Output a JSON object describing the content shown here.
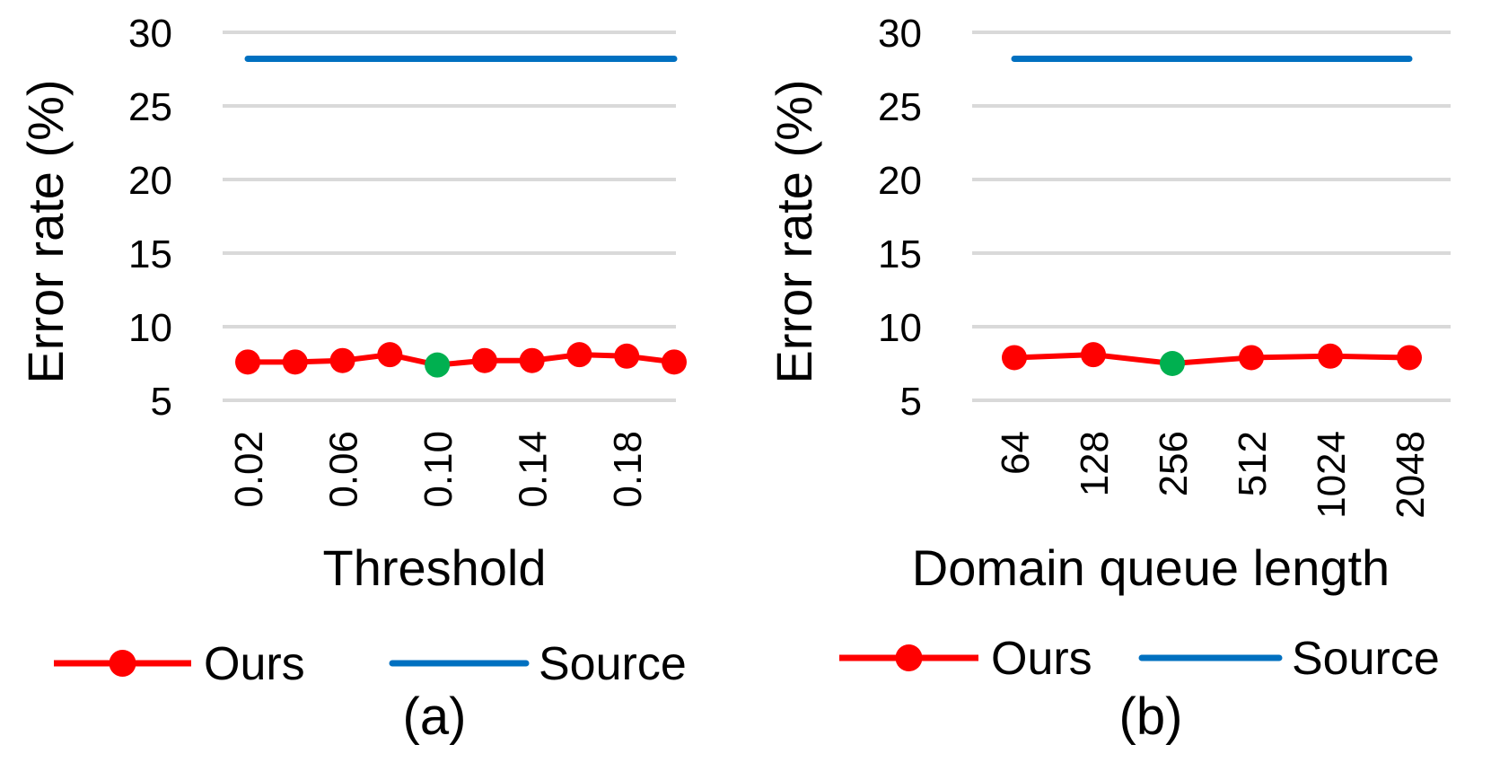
{
  "colors": {
    "ours": "#ff0000",
    "source": "#0070c0",
    "highlight": "#00b050",
    "grid": "#d9d9d9"
  },
  "chart_data": [
    {
      "panel": "(a)",
      "type": "line",
      "ylabel": "Error rate (%)",
      "xlabel": "Threshold",
      "ylim": [
        5,
        30
      ],
      "yticks": [
        "5",
        "10",
        "15",
        "20",
        "25",
        "30"
      ],
      "x": [
        "0.02",
        "0.04",
        "0.06",
        "0.08",
        "0.10",
        "0.12",
        "0.14",
        "0.16",
        "0.18",
        "0.20"
      ],
      "xtick_labels": [
        "0.02",
        "",
        "0.06",
        "",
        "0.10",
        "",
        "0.14",
        "",
        "0.18",
        ""
      ],
      "highlight_index": 4,
      "grid": true,
      "legend": "bottom",
      "series": [
        {
          "name": "Ours",
          "values": [
            7.6,
            7.6,
            7.7,
            8.1,
            7.4,
            7.7,
            7.7,
            8.1,
            8.0,
            7.6
          ]
        },
        {
          "name": "Source",
          "values": [
            28.2,
            28.2,
            28.2,
            28.2,
            28.2,
            28.2,
            28.2,
            28.2,
            28.2,
            28.2
          ]
        }
      ]
    },
    {
      "panel": "(b)",
      "type": "line",
      "ylabel": "Error rate (%)",
      "xlabel": "Domain queue length",
      "ylim": [
        5,
        30
      ],
      "yticks": [
        "5",
        "10",
        "15",
        "20",
        "25",
        "30"
      ],
      "x": [
        "64",
        "128",
        "256",
        "512",
        "1024",
        "2048"
      ],
      "xtick_labels": [
        "64",
        "128",
        "256",
        "512",
        "1024",
        "2048"
      ],
      "highlight_index": 2,
      "grid": true,
      "legend": "bottom",
      "series": [
        {
          "name": "Ours",
          "values": [
            7.9,
            8.1,
            7.5,
            7.9,
            8.0,
            7.9
          ]
        },
        {
          "name": "Source",
          "values": [
            28.2,
            28.2,
            28.2,
            28.2,
            28.2,
            28.2
          ]
        }
      ]
    }
  ]
}
